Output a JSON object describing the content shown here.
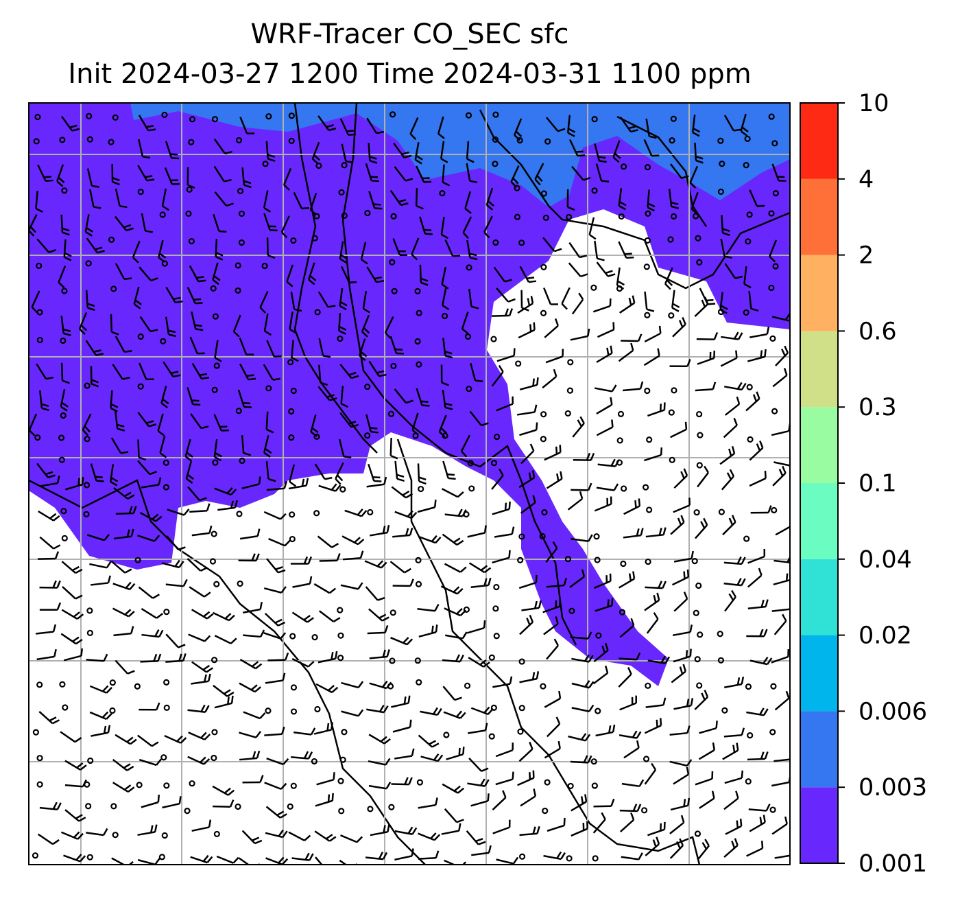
{
  "title": {
    "line1": "WRF-Tracer CO_SEC sfc",
    "line2": "Init 2024-03-27 1200 Time 2024-03-31 1100 ppm"
  },
  "colorbar": {
    "ticks": [
      "0.001",
      "0.003",
      "0.006",
      "0.02",
      "0.04",
      "0.1",
      "0.3",
      "0.6",
      "2",
      "4",
      "10"
    ],
    "colors": [
      "#6828fd",
      "#3477f0",
      "#00b4ec",
      "#30e2d6",
      "#6afcc0",
      "#9afca0",
      "#d0e088",
      "#ffb060",
      "#ff7038",
      "#ff2a14"
    ]
  },
  "map": {
    "background": "#ffffff",
    "grid_color": "#b0b0b0",
    "field_levels_visible": [
      "0.001",
      "0.003"
    ]
  }
}
